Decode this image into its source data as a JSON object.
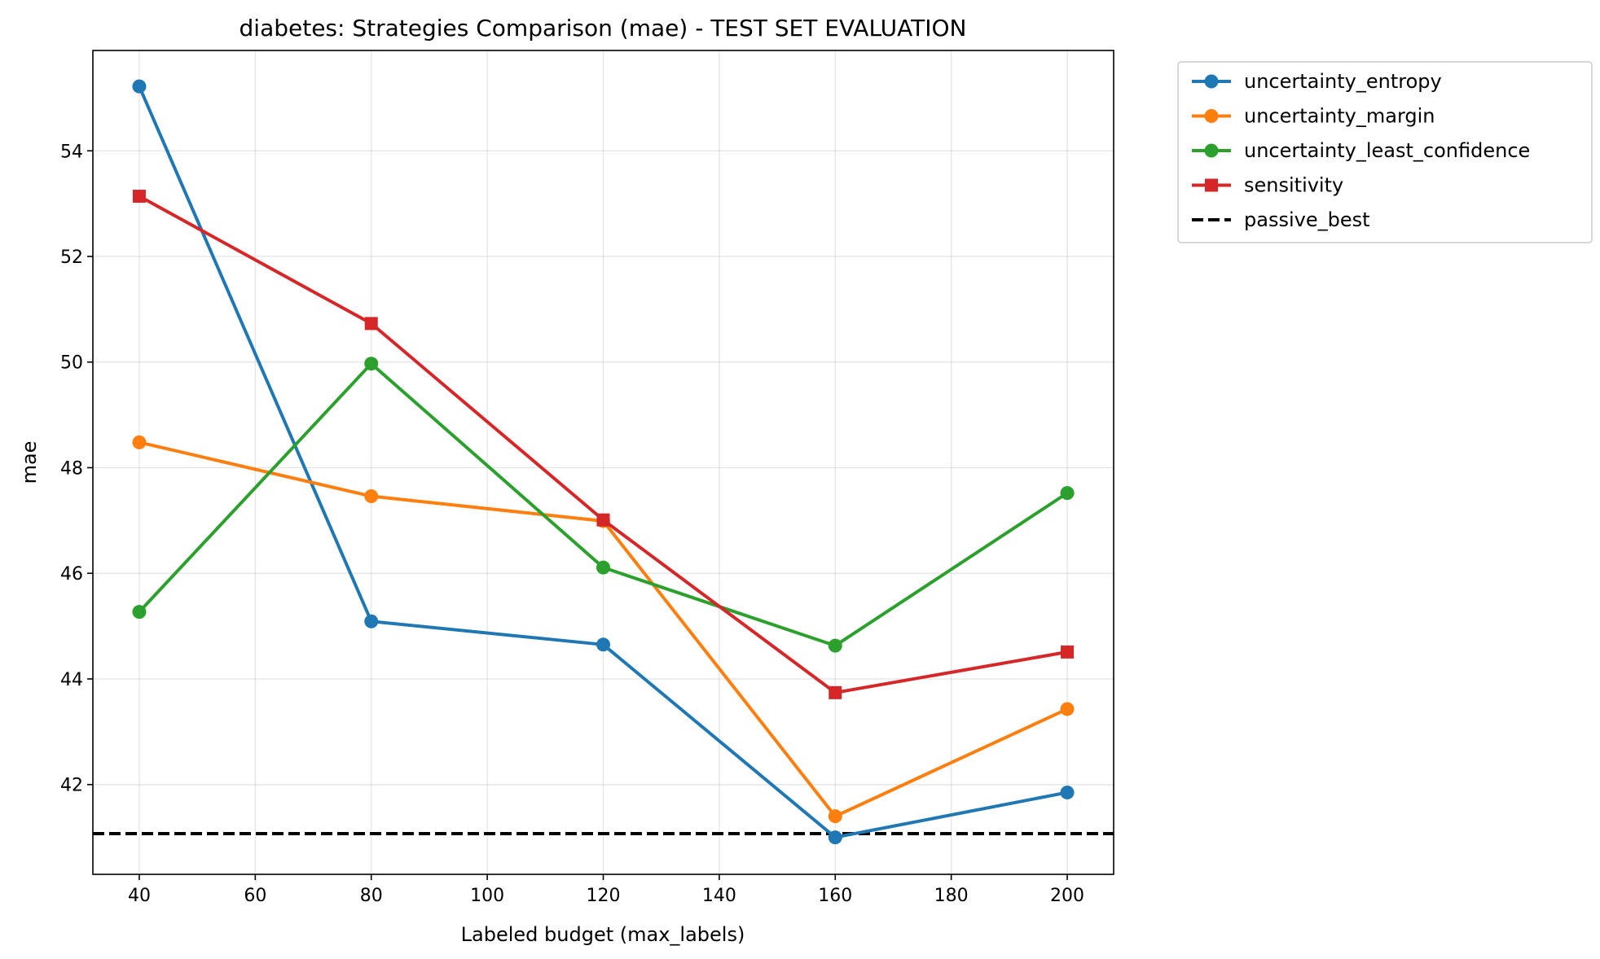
{
  "chart_data": {
    "type": "line",
    "title": "diabetes: Strategies Comparison (mae) - TEST SET EVALUATION",
    "xlabel": "Labeled budget (max_labels)",
    "ylabel": "mae",
    "xlim": [
      32,
      208
    ],
    "ylim": [
      40.3,
      55.9
    ],
    "xticks": [
      40,
      60,
      80,
      100,
      120,
      140,
      160,
      180,
      200
    ],
    "yticks": [
      42,
      44,
      46,
      48,
      50,
      52,
      54
    ],
    "grid": true,
    "legend_position": "outside-top-right",
    "x": [
      40,
      80,
      120,
      160,
      200
    ],
    "series": [
      {
        "name": "uncertainty_entropy",
        "color": "#1f77b4",
        "marker": "circle",
        "values": [
          55.22,
          45.09,
          44.65,
          41.0,
          41.85
        ]
      },
      {
        "name": "uncertainty_margin",
        "color": "#ff7f0e",
        "marker": "circle",
        "values": [
          48.48,
          47.46,
          46.99,
          41.4,
          43.43
        ]
      },
      {
        "name": "uncertainty_least_confidence",
        "color": "#2ca02c",
        "marker": "circle",
        "values": [
          45.27,
          49.97,
          46.11,
          44.63,
          47.52
        ]
      },
      {
        "name": "sensitivity",
        "color": "#d62728",
        "marker": "square",
        "values": [
          53.14,
          50.73,
          47.01,
          43.74,
          44.51
        ]
      }
    ],
    "reference_lines": [
      {
        "name": "passive_best",
        "color": "#000000",
        "style": "dashed",
        "y": 41.07
      }
    ]
  }
}
